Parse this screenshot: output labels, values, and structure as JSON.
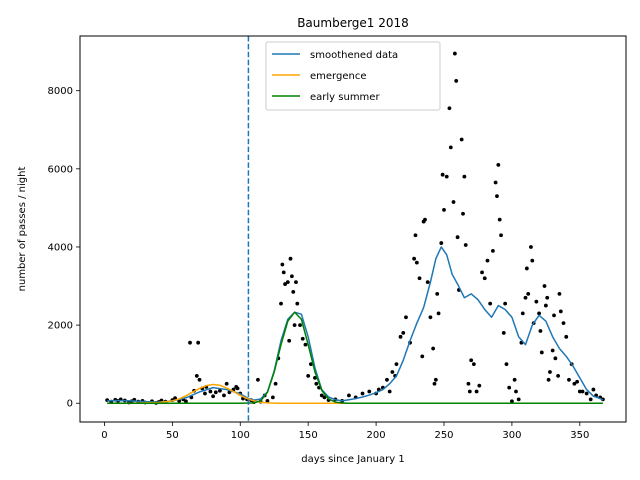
{
  "chart_data": {
    "type": "line",
    "title": "Baumberge1 2018",
    "xlabel": "days since January 1",
    "ylabel": "number of passes / night",
    "xlim": [
      -18,
      384
    ],
    "ylim": [
      -480,
      9400
    ],
    "xticks": [
      0,
      50,
      100,
      150,
      200,
      250,
      300,
      350
    ],
    "yticks": [
      0,
      2000,
      4000,
      6000,
      8000
    ],
    "grid": false,
    "legend_position": "top-center",
    "vline": {
      "x": 106,
      "style": "dashed",
      "color": "#1f77b4"
    },
    "colors": {
      "smoothened": "#1f77b4",
      "emergence": "#ffa500",
      "early_summer": "#008000",
      "points": "#000000"
    },
    "series": [
      {
        "name": "smoothened data",
        "kind": "line",
        "x": [
          2,
          10,
          20,
          30,
          40,
          50,
          60,
          70,
          80,
          90,
          100,
          106,
          110,
          115,
          120,
          125,
          130,
          135,
          140,
          145,
          150,
          155,
          160,
          165,
          170,
          175,
          180,
          185,
          190,
          195,
          200,
          205,
          210,
          215,
          220,
          225,
          230,
          235,
          240,
          244,
          248,
          252,
          256,
          260,
          265,
          270,
          275,
          280,
          285,
          290,
          295,
          300,
          305,
          310,
          315,
          320,
          325,
          330,
          335,
          340,
          345,
          350,
          355,
          360,
          365,
          367
        ],
        "y": [
          60,
          70,
          60,
          40,
          30,
          60,
          140,
          290,
          400,
          350,
          240,
          120,
          80,
          110,
          290,
          830,
          1600,
          2150,
          2330,
          2280,
          1700,
          900,
          350,
          160,
          90,
          60,
          90,
          120,
          160,
          210,
          270,
          350,
          500,
          700,
          1100,
          1600,
          2050,
          2450,
          3100,
          3700,
          4000,
          3800,
          3300,
          3050,
          2700,
          2800,
          2650,
          2400,
          2200,
          2500,
          2400,
          2200,
          1700,
          1500,
          2000,
          2250,
          2100,
          1700,
          1400,
          1200,
          950,
          650,
          350,
          180,
          120,
          80
        ]
      },
      {
        "name": "emergence",
        "kind": "line",
        "x": [
          2,
          20,
          40,
          50,
          55,
          60,
          65,
          70,
          75,
          80,
          85,
          90,
          95,
          100,
          105,
          110,
          115,
          120,
          125,
          130,
          140,
          150,
          160,
          170,
          180,
          190,
          200,
          250,
          300,
          367
        ],
        "y": [
          0,
          2,
          20,
          60,
          110,
          190,
          290,
          380,
          450,
          480,
          460,
          390,
          300,
          200,
          120,
          60,
          25,
          10,
          3,
          0,
          0,
          0,
          0,
          0,
          0,
          0,
          0,
          0,
          0,
          0
        ]
      },
      {
        "name": "early summer",
        "kind": "line",
        "x": [
          2,
          50,
          100,
          110,
          115,
          120,
          125,
          130,
          135,
          140,
          145,
          150,
          155,
          160,
          165,
          170,
          175,
          180,
          190,
          200,
          250,
          300,
          367
        ],
        "y": [
          0,
          0,
          0,
          10,
          60,
          280,
          800,
          1500,
          2100,
          2330,
          2150,
          1500,
          800,
          330,
          110,
          30,
          5,
          0,
          0,
          0,
          0,
          0,
          0
        ]
      },
      {
        "name": "",
        "kind": "scatter",
        "points": [
          [
            2,
            80
          ],
          [
            5,
            40
          ],
          [
            8,
            90
          ],
          [
            10,
            60
          ],
          [
            12,
            100
          ],
          [
            15,
            70
          ],
          [
            18,
            20
          ],
          [
            20,
            50
          ],
          [
            22,
            90
          ],
          [
            25,
            40
          ],
          [
            28,
            60
          ],
          [
            30,
            20
          ],
          [
            35,
            50
          ],
          [
            38,
            10
          ],
          [
            40,
            30
          ],
          [
            42,
            70
          ],
          [
            45,
            40
          ],
          [
            50,
            80
          ],
          [
            52,
            130
          ],
          [
            55,
            60
          ],
          [
            58,
            100
          ],
          [
            60,
            50
          ],
          [
            63,
            1550
          ],
          [
            64,
            150
          ],
          [
            66,
            320
          ],
          [
            68,
            700
          ],
          [
            69,
            1550
          ],
          [
            70,
            600
          ],
          [
            72,
            380
          ],
          [
            74,
            250
          ],
          [
            75,
            420
          ],
          [
            78,
            300
          ],
          [
            80,
            180
          ],
          [
            82,
            280
          ],
          [
            85,
            320
          ],
          [
            88,
            200
          ],
          [
            90,
            500
          ],
          [
            92,
            280
          ],
          [
            95,
            350
          ],
          [
            97,
            420
          ],
          [
            98,
            380
          ],
          [
            100,
            250
          ],
          [
            102,
            120
          ],
          [
            105,
            100
          ],
          [
            108,
            80
          ],
          [
            110,
            30
          ],
          [
            113,
            600
          ],
          [
            115,
            40
          ],
          [
            118,
            200
          ],
          [
            120,
            60
          ],
          [
            124,
            150
          ],
          [
            126,
            500
          ],
          [
            128,
            1150
          ],
          [
            130,
            2550
          ],
          [
            131,
            3550
          ],
          [
            132,
            3350
          ],
          [
            133,
            3050
          ],
          [
            135,
            3100
          ],
          [
            136,
            1600
          ],
          [
            137,
            3700
          ],
          [
            138,
            3250
          ],
          [
            139,
            2850
          ],
          [
            140,
            2000
          ],
          [
            141,
            3100
          ],
          [
            142,
            2550
          ],
          [
            144,
            2000
          ],
          [
            146,
            1650
          ],
          [
            148,
            1500
          ],
          [
            150,
            700
          ],
          [
            152,
            1000
          ],
          [
            155,
            650
          ],
          [
            156,
            500
          ],
          [
            158,
            400
          ],
          [
            160,
            200
          ],
          [
            162,
            150
          ],
          [
            165,
            80
          ],
          [
            170,
            100
          ],
          [
            175,
            60
          ],
          [
            180,
            200
          ],
          [
            185,
            150
          ],
          [
            190,
            250
          ],
          [
            195,
            300
          ],
          [
            200,
            250
          ],
          [
            202,
            350
          ],
          [
            205,
            400
          ],
          [
            208,
            600
          ],
          [
            210,
            300
          ],
          [
            212,
            800
          ],
          [
            214,
            700
          ],
          [
            215,
            1000
          ],
          [
            218,
            1700
          ],
          [
            220,
            1800
          ],
          [
            222,
            2200
          ],
          [
            225,
            1550
          ],
          [
            228,
            3700
          ],
          [
            229,
            4300
          ],
          [
            230,
            3600
          ],
          [
            232,
            3200
          ],
          [
            234,
            1200
          ],
          [
            235,
            4650
          ],
          [
            236,
            4700
          ],
          [
            238,
            3100
          ],
          [
            240,
            2200
          ],
          [
            242,
            1400
          ],
          [
            243,
            500
          ],
          [
            244,
            600
          ],
          [
            245,
            2800
          ],
          [
            246,
            2300
          ],
          [
            248,
            4100
          ],
          [
            249,
            5850
          ],
          [
            250,
            4950
          ],
          [
            252,
            5800
          ],
          [
            254,
            7550
          ],
          [
            255,
            6550
          ],
          [
            257,
            5150
          ],
          [
            258,
            8950
          ],
          [
            259,
            8250
          ],
          [
            260,
            4250
          ],
          [
            261,
            2900
          ],
          [
            263,
            6750
          ],
          [
            264,
            4850
          ],
          [
            265,
            5800
          ],
          [
            266,
            4050
          ],
          [
            268,
            500
          ],
          [
            269,
            300
          ],
          [
            270,
            1100
          ],
          [
            272,
            1000
          ],
          [
            274,
            300
          ],
          [
            276,
            450
          ],
          [
            278,
            3350
          ],
          [
            280,
            3200
          ],
          [
            282,
            3650
          ],
          [
            284,
            2550
          ],
          [
            286,
            3900
          ],
          [
            288,
            5650
          ],
          [
            289,
            5300
          ],
          [
            290,
            6100
          ],
          [
            291,
            4700
          ],
          [
            292,
            4300
          ],
          [
            294,
            1800
          ],
          [
            295,
            2550
          ],
          [
            296,
            1000
          ],
          [
            298,
            400
          ],
          [
            300,
            50
          ],
          [
            302,
            600
          ],
          [
            303,
            300
          ],
          [
            305,
            100
          ],
          [
            307,
            1550
          ],
          [
            308,
            2300
          ],
          [
            310,
            2700
          ],
          [
            311,
            3450
          ],
          [
            312,
            2800
          ],
          [
            314,
            4000
          ],
          [
            315,
            3650
          ],
          [
            316,
            2050
          ],
          [
            318,
            2600
          ],
          [
            320,
            2300
          ],
          [
            321,
            1850
          ],
          [
            322,
            1300
          ],
          [
            324,
            3000
          ],
          [
            325,
            2500
          ],
          [
            326,
            2700
          ],
          [
            327,
            600
          ],
          [
            328,
            800
          ],
          [
            330,
            1350
          ],
          [
            331,
            2250
          ],
          [
            332,
            1150
          ],
          [
            334,
            700
          ],
          [
            335,
            2800
          ],
          [
            336,
            2350
          ],
          [
            338,
            2050
          ],
          [
            340,
            1700
          ],
          [
            342,
            600
          ],
          [
            344,
            1000
          ],
          [
            346,
            500
          ],
          [
            348,
            550
          ],
          [
            350,
            300
          ],
          [
            352,
            300
          ],
          [
            355,
            250
          ],
          [
            358,
            100
          ],
          [
            360,
            350
          ],
          [
            362,
            200
          ],
          [
            365,
            150
          ],
          [
            367,
            100
          ]
        ]
      }
    ]
  }
}
